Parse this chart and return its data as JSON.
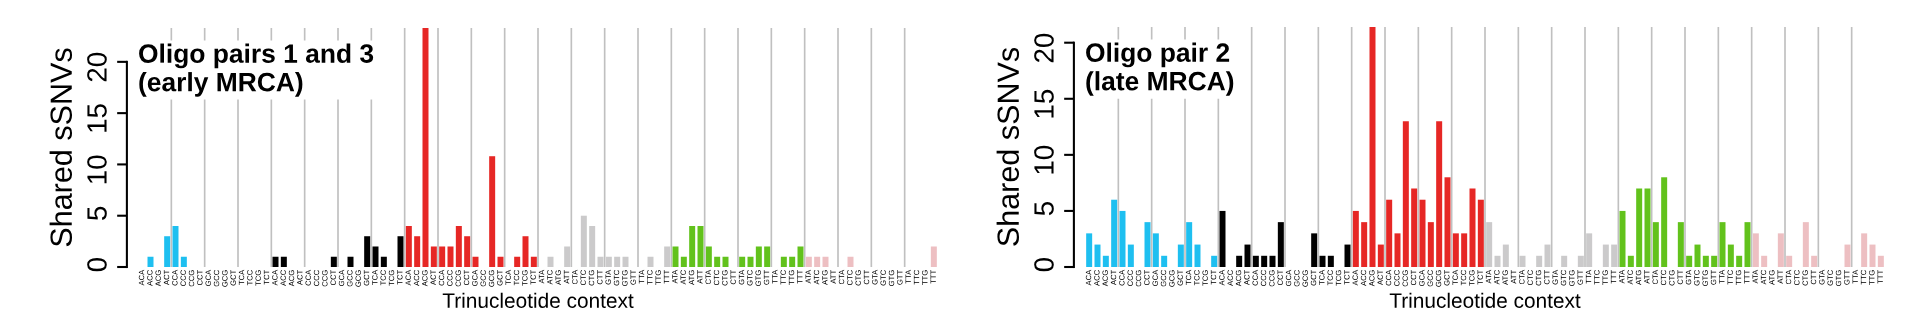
{
  "chart_data": [
    {
      "type": "bar",
      "title": "Oligo pairs 1 and 3\n(early MRCA)",
      "xlabel": "Trinucleotide context",
      "ylabel": "Shared sSNVs",
      "grid": "x",
      "categories": [
        "ACA",
        "ACC",
        "ACG",
        "ACT",
        "CCA",
        "CCC",
        "CCG",
        "CCT",
        "GCA",
        "GCC",
        "GCG",
        "GCT",
        "TCA",
        "TCC",
        "TCG",
        "TCT",
        "ACA",
        "ACC",
        "ACG",
        "ACT",
        "CCA",
        "CCC",
        "CCG",
        "CCT",
        "GCA",
        "GCC",
        "GCG",
        "GCT",
        "TCA",
        "TCC",
        "TCG",
        "TCT",
        "ACA",
        "ACC",
        "ACG",
        "ACT",
        "CCA",
        "CCC",
        "CCG",
        "CCT",
        "GCA",
        "GCC",
        "GCG",
        "GCT",
        "TCA",
        "TCC",
        "TCG",
        "TCT",
        "ATA",
        "ATC",
        "ATG",
        "ATT",
        "CTA",
        "CTC",
        "CTG",
        "CTT",
        "GTA",
        "GTC",
        "GTG",
        "GTT",
        "TTA",
        "TTC",
        "TTG",
        "TTT",
        "ATA",
        "ATC",
        "ATG",
        "ATT",
        "CTA",
        "CTC",
        "CTG",
        "CTT",
        "GTA",
        "GTC",
        "GTG",
        "GTT",
        "TTA",
        "TTC",
        "TTG",
        "TTT",
        "ATA",
        "ATC",
        "ATG",
        "ATT",
        "CTA",
        "CTC",
        "CTG",
        "CTT",
        "GTA",
        "GTC",
        "GTG",
        "GTT",
        "TTA",
        "TTC",
        "TTG",
        "TTT"
      ],
      "values": [
        0,
        1,
        0,
        3,
        4,
        1,
        0,
        0,
        0,
        0,
        0,
        0,
        0,
        0,
        0,
        0,
        1,
        1,
        0,
        0,
        0,
        0,
        0,
        1,
        0,
        1,
        0,
        3,
        2,
        1,
        0,
        3,
        4,
        3,
        23.3,
        2,
        2,
        2,
        4,
        3,
        1,
        0,
        10.8,
        1,
        0,
        1,
        3,
        1,
        0,
        1,
        0,
        2,
        0,
        5,
        4,
        1,
        1,
        1,
        1,
        0,
        0,
        1,
        0,
        2,
        2,
        1,
        4,
        4,
        2,
        1,
        1,
        0,
        1,
        1,
        2,
        2,
        0,
        1,
        1,
        2,
        1,
        1,
        1,
        0,
        0,
        1,
        0,
        0,
        0,
        0,
        0,
        0,
        0,
        0,
        0,
        2
      ],
      "colors": [
        "#1ebff0",
        "#1ebff0",
        "#1ebff0",
        "#1ebff0",
        "#1ebff0",
        "#1ebff0",
        "#1ebff0",
        "#1ebff0",
        "#1ebff0",
        "#1ebff0",
        "#1ebff0",
        "#1ebff0",
        "#1ebff0",
        "#1ebff0",
        "#1ebff0",
        "#1ebff0",
        "#000000",
        "#000000",
        "#000000",
        "#000000",
        "#000000",
        "#000000",
        "#000000",
        "#000000",
        "#000000",
        "#000000",
        "#000000",
        "#000000",
        "#000000",
        "#000000",
        "#000000",
        "#000000",
        "#e62725",
        "#e62725",
        "#e62725",
        "#e62725",
        "#e62725",
        "#e62725",
        "#e62725",
        "#e62725",
        "#e62725",
        "#e62725",
        "#e62725",
        "#e62725",
        "#e62725",
        "#e62725",
        "#e62725",
        "#e62725",
        "#cbcacb",
        "#cbcacb",
        "#cbcacb",
        "#cbcacb",
        "#cbcacb",
        "#cbcacb",
        "#cbcacb",
        "#cbcacb",
        "#cbcacb",
        "#cbcacb",
        "#cbcacb",
        "#cbcacb",
        "#cbcacb",
        "#cbcacb",
        "#cbcacb",
        "#cbcacb",
        "#62c21c",
        "#62c21c",
        "#62c21c",
        "#62c21c",
        "#62c21c",
        "#62c21c",
        "#62c21c",
        "#62c21c",
        "#62c21c",
        "#62c21c",
        "#62c21c",
        "#62c21c",
        "#62c21c",
        "#62c21c",
        "#62c21c",
        "#62c21c",
        "#edbfc2",
        "#edbfc2",
        "#edbfc2",
        "#edbfc2",
        "#edbfc2",
        "#edbfc2",
        "#edbfc2",
        "#edbfc2",
        "#edbfc2",
        "#edbfc2",
        "#edbfc2",
        "#edbfc2",
        "#edbfc2",
        "#edbfc2",
        "#edbfc2",
        "#edbfc2"
      ],
      "ylim": [
        0,
        23.3
      ],
      "yticks": [
        0,
        5,
        10,
        15,
        20
      ]
    },
    {
      "type": "bar",
      "title": "Oligo pair 2\n(late MRCA)",
      "xlabel": "Trinucleotide context",
      "ylabel": "Shared sSNVs",
      "grid": "x",
      "categories": [
        "ACA",
        "ACC",
        "ACG",
        "ACT",
        "CCA",
        "CCC",
        "CCG",
        "CCT",
        "GCA",
        "GCC",
        "GCG",
        "GCT",
        "TCA",
        "TCC",
        "TCG",
        "TCT",
        "ACA",
        "ACC",
        "ACG",
        "ACT",
        "CCA",
        "CCC",
        "CCG",
        "CCT",
        "GCA",
        "GCC",
        "GCG",
        "GCT",
        "TCA",
        "TCC",
        "TCG",
        "TCT",
        "ACA",
        "ACC",
        "ACG",
        "ACT",
        "CCA",
        "CCC",
        "CCG",
        "CCT",
        "GCA",
        "GCC",
        "GCG",
        "GCT",
        "TCA",
        "TCC",
        "TCG",
        "TCT",
        "ATA",
        "ATC",
        "ATG",
        "ATT",
        "CTA",
        "CTC",
        "CTG",
        "CTT",
        "GTA",
        "GTC",
        "GTG",
        "GTT",
        "TTA",
        "TTC",
        "TTG",
        "TTT",
        "ATA",
        "ATC",
        "ATG",
        "ATT",
        "CTA",
        "CTC",
        "CTG",
        "CTT",
        "GTA",
        "GTC",
        "GTG",
        "GTT",
        "TTA",
        "TTC",
        "TTG",
        "TTT",
        "ATA",
        "ATC",
        "ATG",
        "ATT",
        "CTA",
        "CTC",
        "CTG",
        "CTT",
        "GTA",
        "GTC",
        "GTG",
        "GTT",
        "TTA",
        "TTC",
        "TTG",
        "TTT"
      ],
      "values": [
        3,
        2,
        1,
        6,
        5,
        2,
        0,
        4,
        3,
        1,
        0,
        2,
        4,
        2,
        0,
        1,
        5,
        0,
        1,
        2,
        1,
        1,
        1,
        4,
        0,
        0,
        0,
        3,
        1,
        1,
        0,
        2,
        5,
        4,
        21.4,
        2,
        6,
        3,
        13,
        7,
        6,
        4,
        13,
        8,
        3,
        3,
        7,
        6,
        4,
        1,
        2,
        0,
        1,
        0,
        1,
        2,
        0,
        1,
        0,
        1,
        3,
        0,
        2,
        2,
        5,
        1,
        7,
        7,
        4,
        8,
        0,
        4,
        1,
        2,
        1,
        1,
        4,
        2,
        1,
        4,
        3,
        1,
        0,
        3,
        1,
        0,
        4,
        1,
        0,
        0,
        0,
        2,
        0,
        3,
        2,
        1
      ],
      "colors": [
        "#1ebff0",
        "#1ebff0",
        "#1ebff0",
        "#1ebff0",
        "#1ebff0",
        "#1ebff0",
        "#1ebff0",
        "#1ebff0",
        "#1ebff0",
        "#1ebff0",
        "#1ebff0",
        "#1ebff0",
        "#1ebff0",
        "#1ebff0",
        "#1ebff0",
        "#1ebff0",
        "#000000",
        "#000000",
        "#000000",
        "#000000",
        "#000000",
        "#000000",
        "#000000",
        "#000000",
        "#000000",
        "#000000",
        "#000000",
        "#000000",
        "#000000",
        "#000000",
        "#000000",
        "#000000",
        "#e62725",
        "#e62725",
        "#e62725",
        "#e62725",
        "#e62725",
        "#e62725",
        "#e62725",
        "#e62725",
        "#e62725",
        "#e62725",
        "#e62725",
        "#e62725",
        "#e62725",
        "#e62725",
        "#e62725",
        "#e62725",
        "#cbcacb",
        "#cbcacb",
        "#cbcacb",
        "#cbcacb",
        "#cbcacb",
        "#cbcacb",
        "#cbcacb",
        "#cbcacb",
        "#cbcacb",
        "#cbcacb",
        "#cbcacb",
        "#cbcacb",
        "#cbcacb",
        "#cbcacb",
        "#cbcacb",
        "#cbcacb",
        "#62c21c",
        "#62c21c",
        "#62c21c",
        "#62c21c",
        "#62c21c",
        "#62c21c",
        "#62c21c",
        "#62c21c",
        "#62c21c",
        "#62c21c",
        "#62c21c",
        "#62c21c",
        "#62c21c",
        "#62c21c",
        "#62c21c",
        "#62c21c",
        "#edbfc2",
        "#edbfc2",
        "#edbfc2",
        "#edbfc2",
        "#edbfc2",
        "#edbfc2",
        "#edbfc2",
        "#edbfc2",
        "#edbfc2",
        "#edbfc2",
        "#edbfc2",
        "#edbfc2",
        "#edbfc2",
        "#edbfc2",
        "#edbfc2",
        "#edbfc2"
      ],
      "ylim": [
        0,
        21.4
      ],
      "yticks": [
        0,
        5,
        10,
        15,
        20
      ]
    }
  ]
}
